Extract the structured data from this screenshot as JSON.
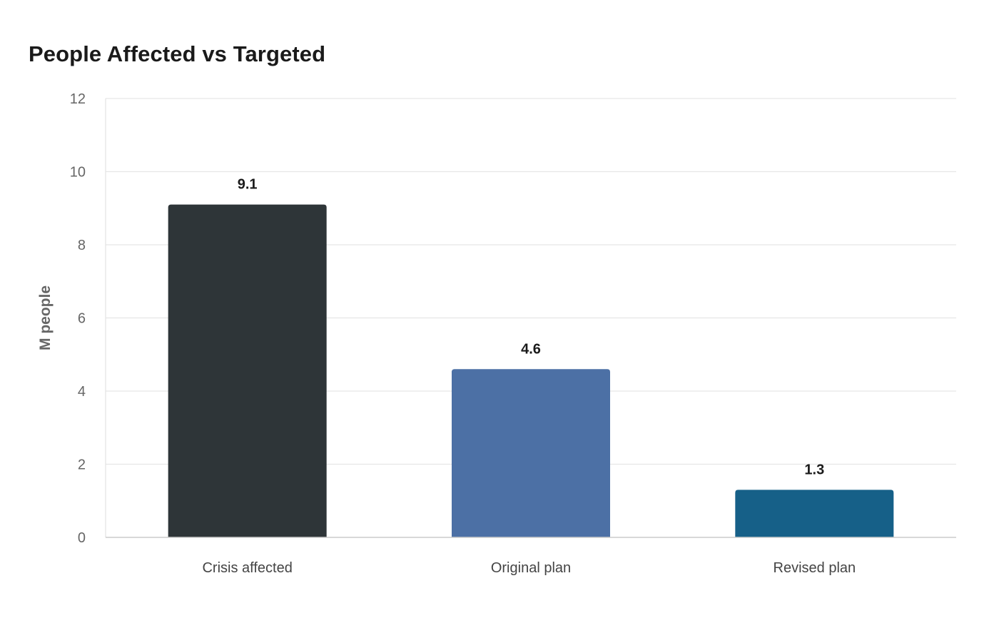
{
  "chart_data": {
    "type": "bar",
    "title": "People Affected vs Targeted",
    "xlabel": "",
    "ylabel": "M people",
    "categories": [
      "Crisis affected",
      "Original plan",
      "Revised plan"
    ],
    "values": [
      9.1,
      4.6,
      1.3
    ],
    "value_labels": [
      "9.1",
      "4.6",
      "1.3"
    ],
    "bar_colors": [
      "#2e3538",
      "#4c70a5",
      "#166088"
    ],
    "ylim": [
      0,
      12
    ],
    "yticks": [
      0,
      2,
      4,
      6,
      8,
      10,
      12
    ],
    "ytick_labels": [
      "0",
      "2",
      "4",
      "6",
      "8",
      "10",
      "12"
    ],
    "grid": true,
    "grid_color": "#e6e6e6",
    "legend": "none"
  }
}
